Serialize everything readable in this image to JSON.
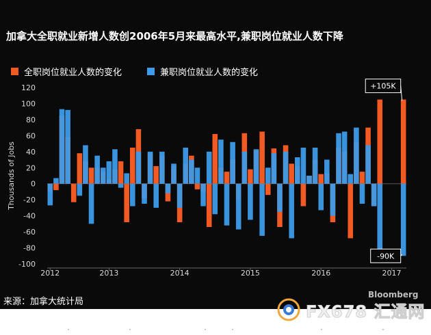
{
  "title": "加拿大全职就业新增人数创2006年5月来最高水平,兼职岗位就业人数下降",
  "source": "来源：加拿大统计局",
  "brand": "Bloomberg",
  "watermark": "FX678 汇通网",
  "colors": {
    "background": "#0a0a0a",
    "fulltime": "#f15a22",
    "parttime": "#3d9be9",
    "text": "#ffffff",
    "axis_text": "#d9d9d9"
  },
  "chart_data": {
    "type": "bar",
    "ylabel": "Thousands of Jobs",
    "ylim": [
      -100,
      120
    ],
    "yticks": [
      120,
      100,
      80,
      60,
      40,
      20,
      0,
      -20,
      -40,
      -60,
      -80,
      -100
    ],
    "x_tick_labels": [
      "2012",
      "2013",
      "2014",
      "2015",
      "2016",
      "2017"
    ],
    "grid": false,
    "legend_placement": "top-left",
    "annotations": [
      {
        "text": "+105K",
        "series": "全职岗位就业人数的变化",
        "index": 60
      },
      {
        "text": "-90K",
        "series": "兼职岗位就业人数的变化",
        "index": 60
      }
    ],
    "series": [
      {
        "name": "全职岗位就业人数的变化",
        "values": [
          -10,
          -8,
          85,
          58,
          -23,
          38,
          28,
          20,
          20,
          15,
          5,
          18,
          28,
          -48,
          45,
          68,
          -18,
          38,
          22,
          35,
          -22,
          22,
          -48,
          25,
          35,
          -7,
          -10,
          -54,
          62,
          20,
          15,
          30,
          -20,
          63,
          18,
          42,
          65,
          -14,
          44,
          -54,
          48,
          25,
          22,
          -28,
          10,
          30,
          12,
          13,
          -48,
          45,
          40,
          -68,
          52,
          15,
          70,
          -28,
          105,
          0,
          0,
          0,
          105
        ]
      },
      {
        "name": "兼职岗位就业人数的变化",
        "values": [
          -27,
          7,
          93,
          92,
          0,
          -15,
          48,
          -50,
          35,
          20,
          28,
          43,
          -5,
          13,
          -28,
          40,
          -25,
          40,
          -30,
          40,
          -12,
          25,
          -30,
          45,
          30,
          20,
          -28,
          40,
          -38,
          55,
          -52,
          52,
          -57,
          40,
          -45,
          43,
          -65,
          20,
          38,
          -35,
          40,
          -68,
          33,
          45,
          10,
          45,
          -33,
          30,
          -40,
          63,
          65,
          12,
          70,
          -25,
          48,
          -28,
          -90,
          0,
          0,
          0,
          -90
        ]
      }
    ]
  }
}
